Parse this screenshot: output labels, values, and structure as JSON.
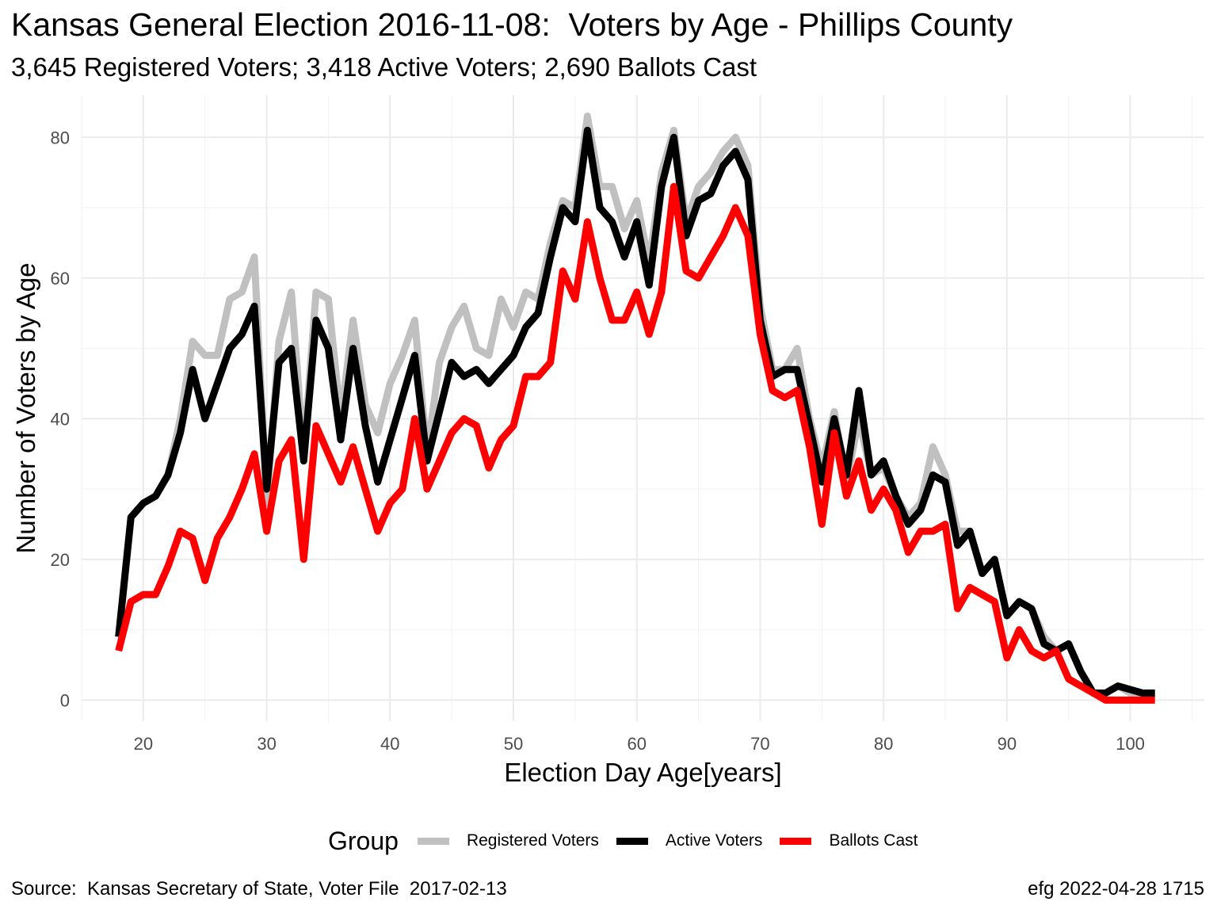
{
  "title": "Kansas General Election 2016-11-08:  Voters by Age - Phillips County",
  "subtitle": "3,645 Registered Voters; 3,418 Active Voters; 2,690 Ballots Cast",
  "caption_left": "Source:  Kansas Secretary of State, Voter File  2017-02-13",
  "caption_right": "efg 2022-04-28 1715",
  "legend": {
    "title": "Group",
    "items": [
      {
        "label": "Registered Voters",
        "color": "#c0c0c0"
      },
      {
        "label": "Active Voters",
        "color": "#000000"
      },
      {
        "label": "Ballots Cast",
        "color": "#ff0000"
      }
    ]
  },
  "chart_data": {
    "type": "line",
    "xlabel": "Election Day Age[years]",
    "ylabel": "Number of Voters by Age",
    "xlim": [
      15,
      106
    ],
    "ylim": [
      -3,
      86
    ],
    "xticks": [
      20,
      30,
      40,
      50,
      60,
      70,
      80,
      90,
      100
    ],
    "yticks": [
      0,
      20,
      40,
      60,
      80
    ],
    "grid": true,
    "legend_position": "bottom",
    "x": [
      18,
      19,
      20,
      21,
      22,
      23,
      24,
      25,
      26,
      27,
      28,
      29,
      30,
      31,
      32,
      33,
      34,
      35,
      36,
      37,
      38,
      39,
      40,
      41,
      42,
      43,
      44,
      45,
      46,
      47,
      48,
      49,
      50,
      51,
      52,
      53,
      54,
      55,
      56,
      57,
      58,
      59,
      60,
      61,
      62,
      63,
      64,
      65,
      66,
      67,
      68,
      69,
      70,
      71,
      72,
      73,
      74,
      75,
      76,
      77,
      78,
      79,
      80,
      81,
      82,
      83,
      84,
      85,
      86,
      87,
      88,
      89,
      90,
      91,
      92,
      93,
      94,
      95,
      96,
      97,
      98,
      99,
      100,
      101,
      102
    ],
    "series": [
      {
        "name": "Registered Voters",
        "color": "#c0c0c0",
        "values": [
          9,
          26,
          28,
          29,
          32,
          40,
          51,
          49,
          49,
          57,
          58,
          63,
          28,
          51,
          58,
          35,
          58,
          57,
          40,
          54,
          42,
          38,
          45,
          49,
          54,
          35,
          48,
          53,
          56,
          50,
          49,
          57,
          53,
          58,
          57,
          65,
          71,
          70,
          83,
          73,
          73,
          67,
          71,
          62,
          75,
          81,
          68,
          73,
          75,
          78,
          80,
          76,
          56,
          47,
          47,
          50,
          40,
          33,
          41,
          31,
          40,
          32,
          33,
          29,
          26,
          28,
          36,
          32,
          24,
          24,
          18,
          20,
          12,
          14,
          13,
          9,
          7,
          8,
          4,
          1,
          1,
          2,
          1,
          1,
          1
        ]
      },
      {
        "name": "Active Voters",
        "color": "#000000",
        "values": [
          9,
          26,
          28,
          29,
          32,
          38,
          47,
          40,
          45,
          50,
          52,
          56,
          30,
          48,
          50,
          34,
          54,
          50,
          37,
          50,
          39,
          31,
          37,
          43,
          49,
          34,
          41,
          48,
          46,
          47,
          45,
          47,
          49,
          53,
          55,
          63,
          70,
          68,
          81,
          70,
          68,
          63,
          68,
          59,
          73,
          80,
          66,
          71,
          72,
          76,
          78,
          74,
          54,
          46,
          47,
          47,
          39,
          31,
          40,
          32,
          44,
          32,
          34,
          29,
          25,
          27,
          32,
          31,
          22,
          24,
          18,
          20,
          12,
          14,
          13,
          8,
          7,
          8,
          4,
          1,
          1,
          2,
          1.5,
          1,
          1
        ]
      },
      {
        "name": "Ballots Cast",
        "color": "#ff0000",
        "values": [
          7,
          14,
          15,
          15,
          19,
          24,
          23,
          17,
          23,
          26,
          30,
          35,
          24,
          34,
          37,
          20,
          39,
          35,
          31,
          36,
          30,
          24,
          28,
          30,
          40,
          30,
          34,
          38,
          40,
          39,
          33,
          37,
          39,
          46,
          46,
          48,
          61,
          57,
          68,
          60,
          54,
          54,
          58,
          52,
          58,
          73,
          61,
          60,
          63,
          66,
          70,
          66,
          52,
          44,
          43,
          44,
          36,
          25,
          38,
          29,
          34,
          27,
          30,
          27,
          21,
          24,
          24,
          25,
          13,
          16,
          15,
          14,
          6,
          10,
          7,
          6,
          7,
          3,
          2,
          1,
          0,
          0,
          0,
          0,
          0
        ]
      }
    ]
  }
}
